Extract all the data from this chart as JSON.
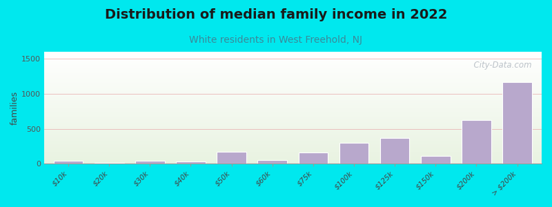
{
  "title": "Distribution of median family income in 2022",
  "subtitle": "White residents in West Freehold, NJ",
  "categories": [
    "$10k",
    "$20k",
    "$30k",
    "$40k",
    "$50k",
    "$60k",
    "$75k",
    "$100k",
    "$125k",
    "$150k",
    "$200k",
    "> $200k"
  ],
  "values": [
    40,
    10,
    45,
    35,
    175,
    55,
    165,
    300,
    365,
    110,
    620,
    1165
  ],
  "bar_color": "#b8a8cc",
  "bar_edge_color": "#ffffff",
  "background_outer": "#00e8ee",
  "title_color": "#1a1a1a",
  "subtitle_color": "#3a8a9a",
  "ylabel": "families",
  "ylim": [
    0,
    1600
  ],
  "yticks": [
    0,
    500,
    1000,
    1500
  ],
  "grid_color": "#e8b0b0",
  "watermark": "  City-Data.com",
  "title_fontsize": 14,
  "subtitle_fontsize": 10
}
